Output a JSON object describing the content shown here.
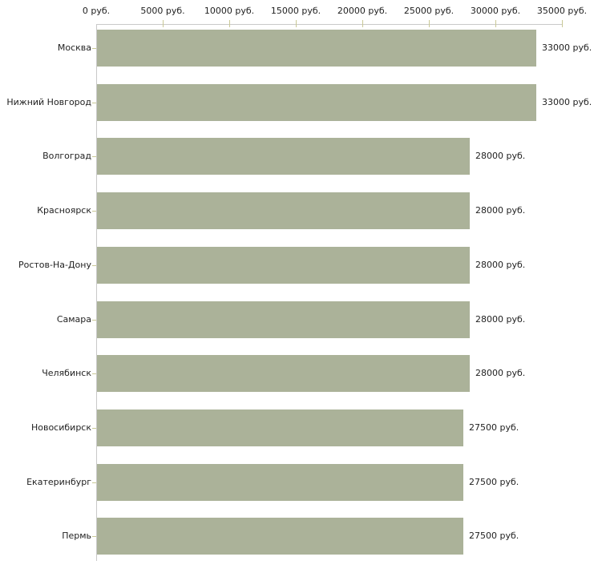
{
  "chart_data": {
    "type": "bar",
    "orientation": "horizontal",
    "categories": [
      "Москва",
      "Нижний Новгород",
      "Волгоград",
      "Красноярск",
      "Ростов-На-Дону",
      "Самара",
      "Челябинск",
      "Новосибирск",
      "Екатеринбург",
      "Пермь"
    ],
    "values": [
      33000,
      33000,
      28000,
      28000,
      28000,
      28000,
      28000,
      27500,
      27500,
      27500
    ],
    "value_labels": [
      "33000 руб.",
      "33000 руб.",
      "28000 руб.",
      "28000 руб.",
      "28000 руб.",
      "28000 руб.",
      "28000 руб.",
      "27500 руб.",
      "27500 руб.",
      "27500 руб."
    ],
    "x_ticks": [
      {
        "value": 0,
        "label": "0 руб."
      },
      {
        "value": 5000,
        "label": "5000 руб."
      },
      {
        "value": 10000,
        "label": "10000 руб."
      },
      {
        "value": 15000,
        "label": "15000 руб."
      },
      {
        "value": 20000,
        "label": "20000 руб."
      },
      {
        "value": 25000,
        "label": "25000 руб."
      },
      {
        "value": 30000,
        "label": "30000 руб."
      },
      {
        "value": 35000,
        "label": "35000 руб."
      }
    ],
    "xlim": [
      0,
      35000
    ],
    "grid": false,
    "legend_position": "none",
    "colors": {
      "bar": "#abb299",
      "axis_line": "#c9c9c9",
      "tick_mark": "#c9c896",
      "text": "#1f1f1f",
      "background": "#ffffff"
    }
  }
}
